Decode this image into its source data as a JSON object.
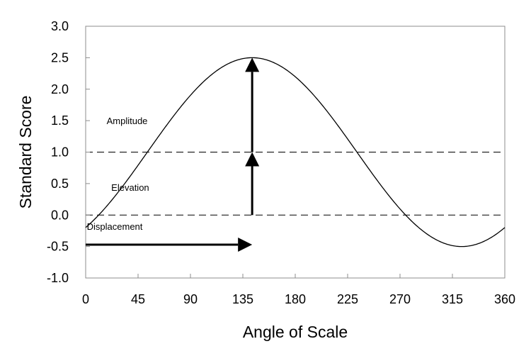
{
  "chart_data": {
    "type": "line",
    "xlabel": "Angle of Scale",
    "ylabel": "Standard Score",
    "xlim": [
      0,
      360
    ],
    "ylim": [
      -1.0,
      3.0
    ],
    "xticks": [
      0,
      45,
      90,
      135,
      180,
      225,
      270,
      315,
      360
    ],
    "yticks": [
      -1.0,
      -0.5,
      0.0,
      0.5,
      1.0,
      1.5,
      2.0,
      2.5,
      3.0
    ],
    "xtick_labels": [
      "0",
      "45",
      "90",
      "135",
      "180",
      "225",
      "270",
      "315",
      "360"
    ],
    "ytick_labels": [
      "-1.0",
      "-0.5",
      "0.0",
      "0.5",
      "1.0",
      "1.5",
      "2.0",
      "2.5",
      "3.0"
    ],
    "grid": false,
    "series": [
      {
        "curve": "cosine",
        "elevation": 1.0,
        "amplitude": 1.5,
        "displacement": 143,
        "color": "#000000"
      }
    ],
    "reference_lines": [
      {
        "y": 0.0,
        "style": "dashed"
      },
      {
        "y": 1.0,
        "style": "dashed"
      }
    ],
    "arrows": [
      {
        "name": "displacement",
        "from": [
          0,
          -0.47
        ],
        "to": [
          143,
          -0.47
        ]
      },
      {
        "name": "elevation",
        "from": [
          143,
          0.0
        ],
        "to": [
          143,
          1.0
        ]
      },
      {
        "name": "amplitude",
        "from": [
          143,
          1.0
        ],
        "to": [
          143,
          2.5
        ]
      }
    ],
    "annotations": [
      {
        "text": "Amplitude",
        "x": 18,
        "y": 1.5
      },
      {
        "text": "Elevation",
        "x": 22,
        "y": 0.44
      },
      {
        "text": "Displacement",
        "x": 1,
        "y": -0.18
      }
    ]
  }
}
